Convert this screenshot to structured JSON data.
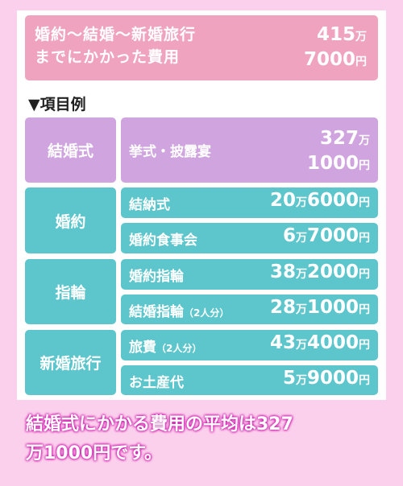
{
  "summary": {
    "label_line1": "婚約〜結婚〜新婚旅行",
    "label_line2": "までにかかった費用",
    "amount_man": "415",
    "amount_rest": "7000"
  },
  "units": {
    "man": "万",
    "yen": "円"
  },
  "heading": "▼項目例",
  "categories": [
    {
      "name": "結婚式"
    },
    {
      "name": "婚約"
    },
    {
      "name": "指輪"
    },
    {
      "name": "新婚旅行"
    }
  ],
  "items": [
    {
      "label": "挙式・披露宴",
      "note": "",
      "man": "327",
      "rest": "1000"
    },
    {
      "label": "結納式",
      "note": "",
      "man": "20",
      "rest": "6000"
    },
    {
      "label": "婚約食事会",
      "note": "",
      "man": "6",
      "rest": "7000"
    },
    {
      "label": "婚約指輪",
      "note": "",
      "man": "38",
      "rest": "2000"
    },
    {
      "label": "結婚指輪",
      "note": "（2人分）",
      "man": "28",
      "rest": "1000"
    },
    {
      "label": "旅費",
      "note": "（2人分）",
      "man": "43",
      "rest": "4000"
    },
    {
      "label": "お土産代",
      "note": "",
      "man": "5",
      "rest": "9000"
    }
  ],
  "caption": {
    "line1": "結婚式にかかる費用の平均は327",
    "line2": "万1000円です。"
  }
}
